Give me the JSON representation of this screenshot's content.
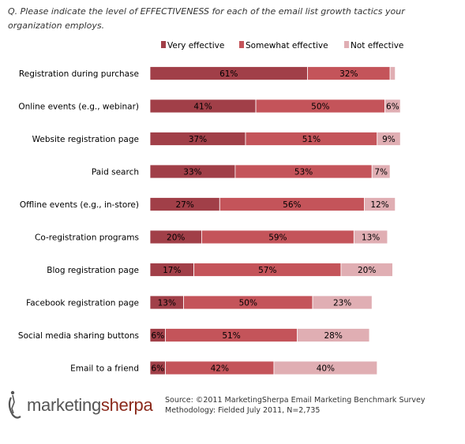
{
  "question": "Q. Please indicate the level of EFFECTIVENESS  for each of the email list growth tactics your organization employs.",
  "chart_data": {
    "type": "bar",
    "stacked": true,
    "orientation": "horizontal",
    "xlim": [
      0,
      100
    ],
    "legend_position": "top",
    "categories": [
      "Registration during purchase",
      "Online events (e.g., webinar)",
      "Website registration page",
      "Paid search",
      "Offline events (e.g., in-store)",
      "Co-registration programs",
      "Blog registration page",
      "Facebook registration page",
      "Social media sharing buttons",
      "Email to a friend"
    ],
    "series": [
      {
        "name": "Very effective",
        "color": "#a13f48",
        "values": [
          61,
          41,
          37,
          33,
          27,
          20,
          17,
          13,
          6,
          6
        ]
      },
      {
        "name": "Somewhat effective",
        "color": "#c4545a",
        "values": [
          32,
          50,
          51,
          53,
          56,
          59,
          57,
          50,
          51,
          42
        ]
      },
      {
        "name": "Not effective",
        "color": "#e0aeb3",
        "values": [
          2,
          6,
          9,
          7,
          12,
          13,
          20,
          23,
          28,
          40
        ]
      }
    ],
    "data_labels": [
      [
        "61%",
        "41%",
        "37%",
        "33%",
        "27%",
        "20%",
        "17%",
        "13%",
        "6%",
        "6%"
      ],
      [
        "32%",
        "50%",
        "51%",
        "53%",
        "56%",
        "59%",
        "57%",
        "50%",
        "51%",
        "42%"
      ],
      [
        "",
        "6%",
        "9%",
        "7%",
        "12%",
        "13%",
        "20%",
        "23%",
        "28%",
        "40%"
      ]
    ]
  },
  "logo": {
    "part1": "marketing",
    "part2": "sherpa",
    "name": "marketingsherpa-logo"
  },
  "source": {
    "line1": "Source: ©2011 MarketingSherpa Email Marketing Benchmark Survey",
    "line2": "Methodology: Fielded July 2011, N=2,735"
  }
}
